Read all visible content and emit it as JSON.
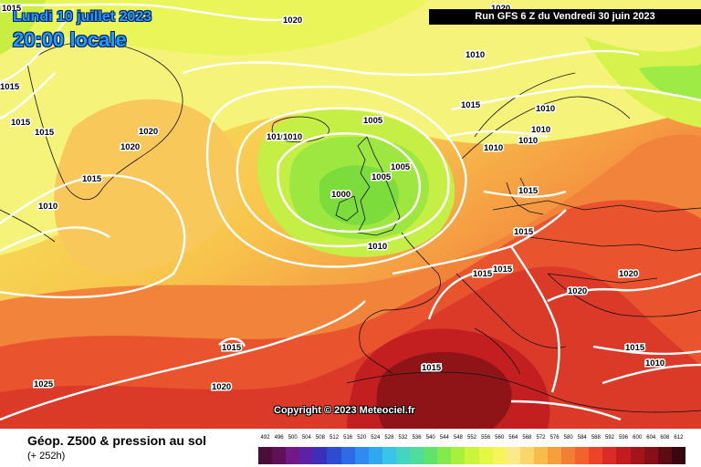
{
  "header": {
    "date": "Lundi 10 juillet 2023",
    "time": "20:00 locale",
    "run_info": "Run GFS 6 Z du Vendredi 30 juin 2023"
  },
  "map": {
    "copyright": "Copyright © 2023 Meteociel.fr",
    "isobar_labels": [
      {
        "text": "1015",
        "name": "isobar-label-1015-nw"
      },
      {
        "text": "1020",
        "name": "isobar-label-1020-north"
      },
      {
        "text": "1020",
        "name": "isobar-label-1020-norway-north"
      },
      {
        "text": "1015",
        "name": "isobar-label-1015-greenland"
      },
      {
        "text": "1015",
        "name": "isobar-label-1015-greenland-2"
      },
      {
        "text": "1015",
        "name": "isobar-label-1015-greenland-3"
      },
      {
        "text": "1020",
        "name": "isobar-label-1020-greenland"
      },
      {
        "text": "1020",
        "name": "isobar-label-1020-greenland-2"
      },
      {
        "text": "1015",
        "name": "isobar-label-1015-labrador"
      },
      {
        "text": "1010",
        "name": "isobar-label-1010-west"
      },
      {
        "text": "1005",
        "name": "isobar-label-1005-iceland"
      },
      {
        "text": "1010",
        "name": "isobar-label-1010-iceland-a"
      },
      {
        "text": "1010",
        "name": "isobar-label-1010-iceland-b"
      },
      {
        "text": "1000",
        "name": "isobar-label-1000-low"
      },
      {
        "text": "1005",
        "name": "isobar-label-1005-north-sea"
      },
      {
        "text": "1005",
        "name": "isobar-label-1005-scotland"
      },
      {
        "text": "1010",
        "name": "isobar-label-1010-channel"
      },
      {
        "text": "1015",
        "name": "isobar-label-1015-norway"
      },
      {
        "text": "1010",
        "name": "isobar-label-1010-norway"
      },
      {
        "text": "1010",
        "name": "isobar-label-1010-sweden-a"
      },
      {
        "text": "1010",
        "name": "isobar-label-1010-sweden-b"
      },
      {
        "text": "1010",
        "name": "isobar-label-1010-sweden-c"
      },
      {
        "text": "1010",
        "name": "isobar-label-1010-skagerrak"
      },
      {
        "text": "1015",
        "name": "isobar-label-1015-denmark"
      },
      {
        "text": "1015",
        "name": "isobar-label-1015-germany"
      },
      {
        "text": "1015",
        "name": "isobar-label-1015-france-a"
      },
      {
        "text": "1015",
        "name": "isobar-label-1015-france-b"
      },
      {
        "text": "1020",
        "name": "isobar-label-1020-alps"
      },
      {
        "text": "1020",
        "name": "isobar-label-1020-east"
      },
      {
        "text": "1015",
        "name": "isobar-label-1015-balkans"
      },
      {
        "text": "1010",
        "name": "isobar-label-1010-turkey"
      },
      {
        "text": "1015",
        "name": "isobar-label-1015-atlantic"
      },
      {
        "text": "1015",
        "name": "isobar-label-1015-sahara"
      },
      {
        "text": "1020",
        "name": "isobar-label-1020-atlantic-south"
      },
      {
        "text": "1025",
        "name": "isobar-label-1025-atlantic"
      }
    ]
  },
  "footer": {
    "title": "Géop. Z500 & pression au sol",
    "lead": "(+ 252h)"
  },
  "legend": {
    "labels": [
      "492",
      "496",
      "500",
      "504",
      "508",
      "512",
      "516",
      "520",
      "524",
      "528",
      "532",
      "536",
      "540",
      "544",
      "548",
      "552",
      "556",
      "560",
      "564",
      "568",
      "572",
      "576",
      "580",
      "584",
      "588",
      "592",
      "596",
      "600",
      "604",
      "608",
      "612"
    ],
    "colors": [
      "#4b0e3a",
      "#5e1158",
      "#731887",
      "#5b22a8",
      "#3b2fbc",
      "#2d4cd3",
      "#2e6ae6",
      "#2e8bf0",
      "#30a8ef",
      "#39c3e6",
      "#44d4c4",
      "#4fdc9c",
      "#5fe26e",
      "#82ea4a",
      "#a8f03c",
      "#c9f53a",
      "#e5f742",
      "#f7f45a",
      "#fde98a",
      "#fbd66a",
      "#f8bc4a",
      "#f69e3c",
      "#f47f34",
      "#f1622c",
      "#ec4428",
      "#dc2a24",
      "#c41b1f",
      "#a6141b",
      "#860f1a",
      "#5f0b14",
      "#380710"
    ]
  }
}
